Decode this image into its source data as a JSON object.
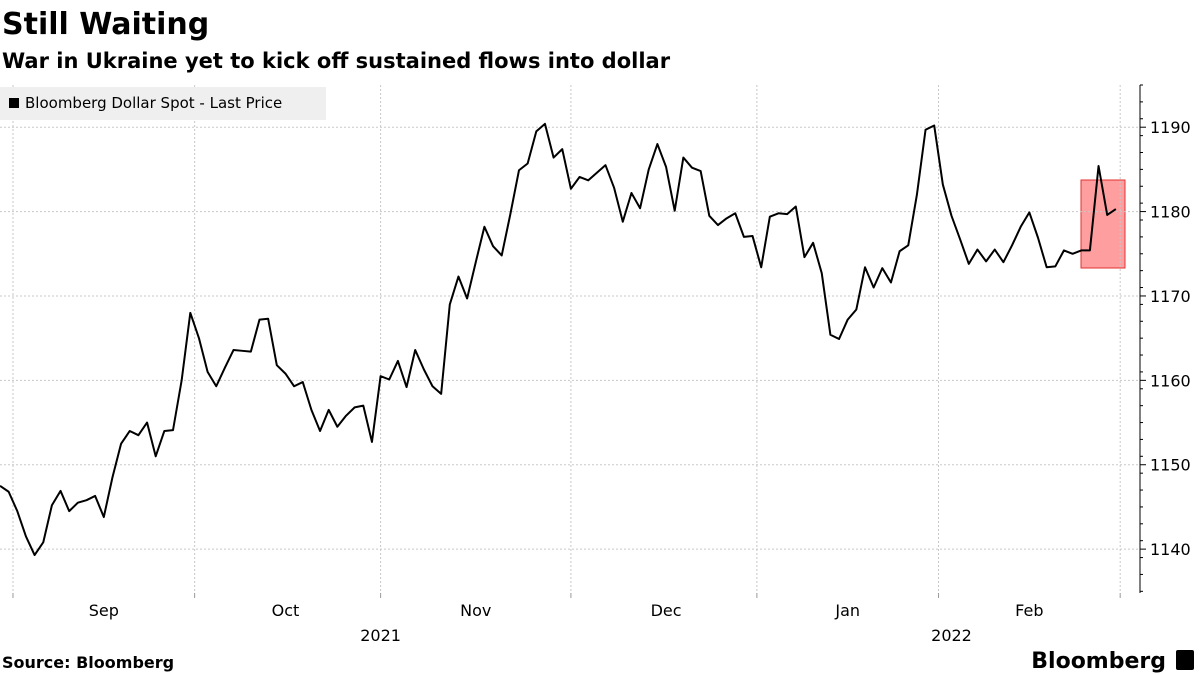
{
  "chart_data": {
    "type": "line",
    "title": "Still Waiting",
    "subtitle": "War in Ukraine yet to kick off sustained flows into dollar",
    "source": "Source: Bloomberg",
    "brand": "Bloomberg",
    "categories": [
      null,
      null,
      null,
      null,
      null,
      null,
      null,
      null,
      null,
      null,
      null,
      null,
      "Sep",
      null,
      null,
      null,
      null,
      null,
      null,
      null,
      null,
      null,
      null,
      null,
      null,
      null,
      null,
      null,
      null,
      null,
      null,
      null,
      null,
      "Oct",
      null,
      null,
      null,
      null,
      null,
      null,
      null,
      null,
      null,
      null,
      null,
      null,
      null,
      null,
      null,
      null,
      null,
      null,
      null,
      null,
      null,
      "Nov",
      null,
      null,
      null,
      null,
      null,
      null,
      null,
      null,
      null,
      null,
      null,
      null,
      null,
      null,
      null,
      null,
      null,
      null,
      null,
      null,
      null,
      "Dec",
      null,
      null,
      null,
      null,
      null,
      null,
      null,
      null,
      null,
      null,
      null,
      null,
      null,
      null,
      null,
      null,
      null,
      null,
      null,
      null,
      "Jan",
      null,
      null,
      null,
      null,
      null,
      null,
      null,
      null,
      null,
      null,
      null,
      null,
      null,
      null,
      null,
      null,
      null,
      null,
      null,
      null,
      "Feb",
      null,
      null,
      null,
      null,
      null,
      null,
      null,
      null,
      null,
      null
    ],
    "year_labels": [
      null,
      null,
      null,
      null,
      null,
      null,
      null,
      null,
      null,
      null,
      null,
      null,
      null,
      null,
      null,
      null,
      null,
      null,
      null,
      null,
      null,
      null,
      null,
      null,
      null,
      null,
      null,
      null,
      null,
      null,
      null,
      null,
      null,
      null,
      null,
      null,
      null,
      null,
      null,
      null,
      null,
      null,
      null,
      null,
      "2021",
      null,
      null,
      null,
      null,
      null,
      null,
      null,
      null,
      null,
      null,
      null,
      null,
      null,
      null,
      null,
      null,
      null,
      null,
      null,
      null,
      null,
      null,
      null,
      null,
      null,
      null,
      null,
      null,
      null,
      null,
      null,
      null,
      null,
      null,
      null,
      null,
      null,
      null,
      null,
      null,
      null,
      null,
      null,
      null,
      null,
      null,
      null,
      null,
      null,
      null,
      null,
      null,
      null,
      null,
      null,
      null,
      null,
      null,
      null,
      null,
      null,
      null,
      null,
      null,
      null,
      "2022",
      null,
      null,
      null,
      null,
      null,
      null,
      null,
      null,
      null,
      null,
      null,
      null,
      null,
      null,
      null,
      null,
      null,
      null
    ],
    "series": [
      {
        "name": "Bloomberg Dollar Spot - Last Price",
        "color": "#000000",
        "values": [
          1147.5,
          1146.8,
          1144.5,
          1141.5,
          1139.3,
          1140.8,
          1145.2,
          1146.9,
          1144.5,
          1145.5,
          1145.8,
          1146.3,
          1143.8,
          1148.5,
          1152.5,
          1154,
          1153.5,
          1155,
          1151,
          1154,
          1154.1,
          1160,
          1168,
          1165,
          1161,
          1159.3,
          1161.5,
          1163.6,
          1163.5,
          1163.4,
          1167.2,
          1167.3,
          1161.8,
          1160.8,
          1159.3,
          1159.8,
          1156.5,
          1154,
          1156.5,
          1154.5,
          1155.8,
          1156.8,
          1157,
          1152.7,
          1160.5,
          1160.1,
          1162.3,
          1159.2,
          1163.6,
          1161.3,
          1159.3,
          1158.4,
          1169,
          1172.3,
          1169.7,
          1174,
          1178.2,
          1175.9,
          1174.8,
          1179.7,
          1184.9,
          1185.7,
          1189.5,
          1190.4,
          1186.4,
          1187.4,
          1182.7,
          1184.1,
          1183.7,
          1184.6,
          1185.5,
          1182.8,
          1178.8,
          1182.2,
          1180.4,
          1185,
          1188,
          1185.3,
          1180.1,
          1186.4,
          1185.2,
          1184.8,
          1179.5,
          1178.4,
          1179.2,
          1179.8,
          1177,
          1177.1,
          1173.4,
          1179.4,
          1179.8,
          1179.7,
          1180.6,
          1174.6,
          1176.3,
          1172.7,
          1165.4,
          1164.9,
          1167.2,
          1168.4,
          1173.4,
          1171,
          1173.3,
          1171.6,
          1175.3,
          1176,
          1182,
          1189.7,
          1190.2,
          1183.2,
          1179.5,
          1176.7,
          1173.8,
          1175.5,
          1174.1,
          1175.5,
          1174,
          1176,
          1178.2,
          1179.9,
          1176.9,
          1173.4,
          1173.5,
          1175.4,
          1175,
          1175.4,
          1175.4,
          1185.4,
          1179.6,
          1180.3
        ]
      }
    ],
    "ylim": [
      1134.8,
      1195
    ],
    "yticks": [
      1140,
      1150,
      1160,
      1170,
      1180,
      1190
    ],
    "grid": true,
    "legend": "top-left"
  }
}
